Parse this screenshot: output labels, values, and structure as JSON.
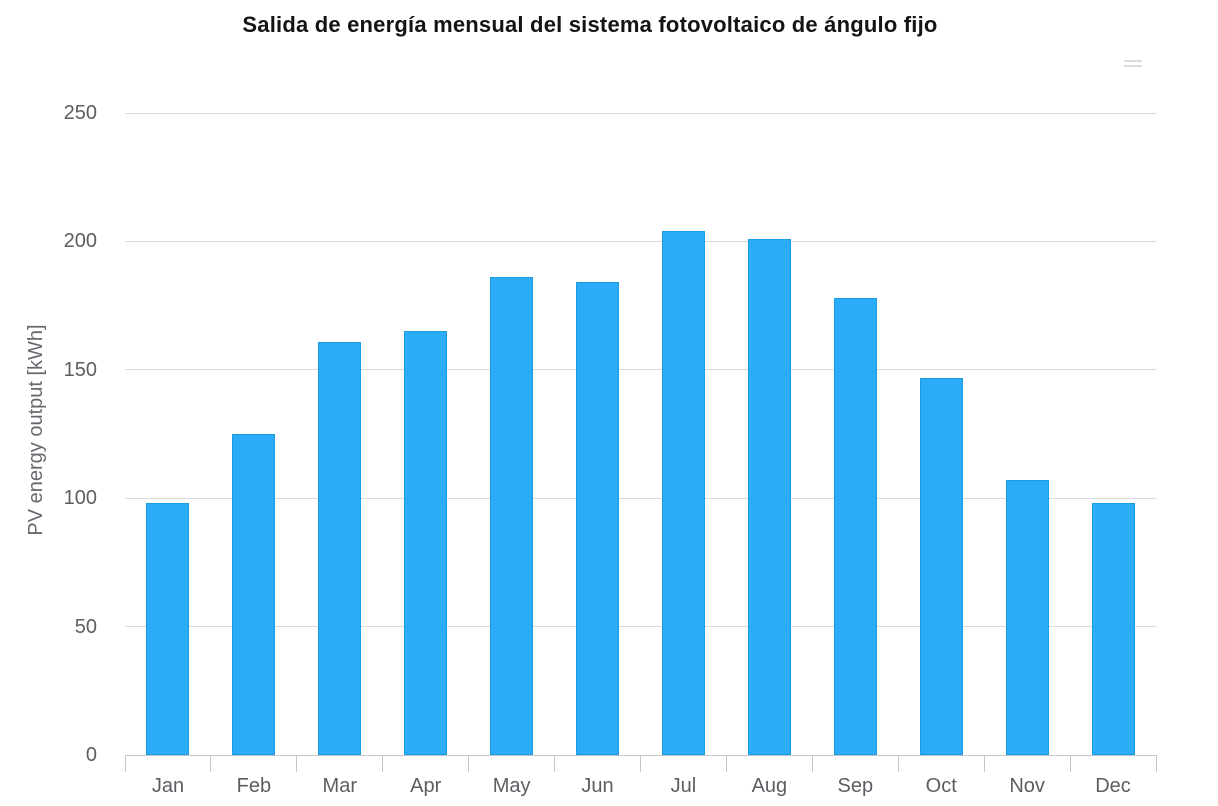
{
  "page": {
    "background": "#ffffff"
  },
  "chart_data": {
    "type": "bar",
    "title": "Salida de energía mensual del sistema fotovoltaico de ángulo fijo",
    "subtitle": "",
    "xlabel": "",
    "ylabel": "PV energy output [kWh]",
    "categories": [
      "Jan",
      "Feb",
      "Mar",
      "Apr",
      "May",
      "Jun",
      "Jul",
      "Aug",
      "Sep",
      "Oct",
      "Nov",
      "Dec"
    ],
    "values": [
      98,
      125,
      161,
      165,
      186,
      184,
      204,
      201,
      178,
      147,
      107,
      98
    ],
    "ylim": [
      0,
      250
    ],
    "yticks": [
      0,
      50,
      100,
      150,
      200,
      250
    ],
    "grid": "horizontal-on",
    "legend": "none",
    "colors": {
      "bar_fill": "#2aacf6",
      "bar_border": "#1b9de4",
      "gridline": "#d9d9d9",
      "axis_line": "#c4c6c9",
      "tick_label": "#5b5e62",
      "title": "#141414",
      "y_axis_title": "#66696e"
    }
  }
}
